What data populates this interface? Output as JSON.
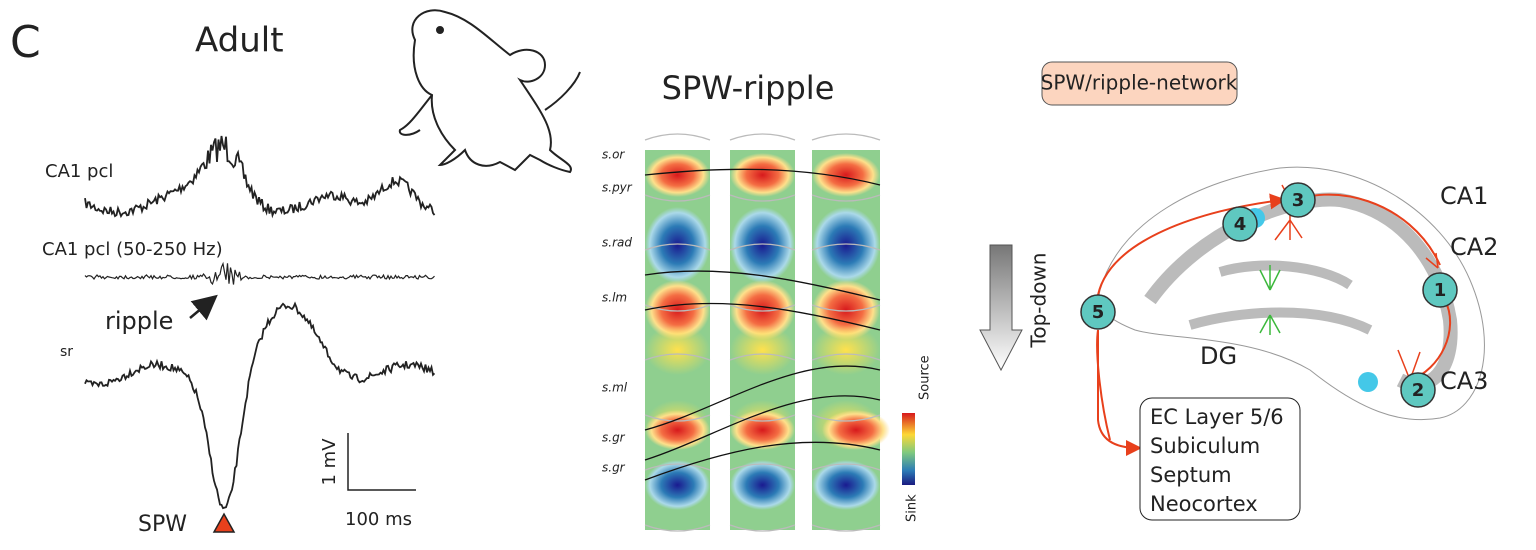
{
  "panel": {
    "letter": "C",
    "title": "Adult"
  },
  "traces": {
    "labels": [
      "CA1 pcl",
      "CA1 pcl (50-250 Hz)",
      "sr"
    ],
    "ripple": "ripple",
    "spw": "SPW",
    "scale_y": "1 mV",
    "scale_x": "100 ms"
  },
  "csd": {
    "title": "SPW-ripple",
    "layers": [
      "s.or",
      "s.pyr",
      "s.rad",
      "s.lm",
      "s.ml",
      "s.gr",
      "s.gr"
    ],
    "colorbar_top": "Source",
    "colorbar_bottom": "Sink"
  },
  "network": {
    "title": "SPW/ripple-network",
    "arrow_label": "Top-down",
    "regions": [
      "CA1",
      "CA2",
      "CA3",
      "DG"
    ],
    "nodes": [
      1,
      2,
      3,
      4,
      5
    ],
    "targets": [
      "EC Layer 5/6",
      "Subiculum",
      "Septum",
      "Neocortex"
    ]
  }
}
